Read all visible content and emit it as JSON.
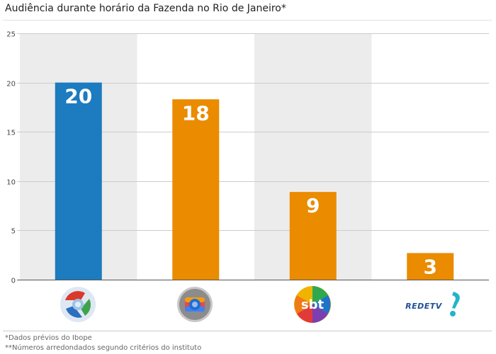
{
  "title": "Audiência durante horário da Fazenda no Rio de Janeiro*",
  "notes": [
    "*Dados prévios do Ibope",
    "**Números arredondados segundo critérios do instituto"
  ],
  "colors": {
    "record": "#1d7bbf",
    "others": "#ea8b00",
    "band": "#ececec",
    "grid": "#cccccc"
  },
  "logos": {
    "record": "record-logo-icon",
    "globo": "globo-logo-icon",
    "sbt": "sbt-logo-icon",
    "redetv": "redetv-logo-icon"
  },
  "chart_data": {
    "type": "bar",
    "categories": [
      "Record",
      "Globo",
      "SBT",
      "RedeTV!"
    ],
    "values": [
      20,
      18.3,
      8.9,
      2.7
    ],
    "data_labels": [
      "20",
      "18",
      "9",
      "3"
    ],
    "bar_colors": [
      "#1d7bbf",
      "#ea8b00",
      "#ea8b00",
      "#ea8b00"
    ],
    "ylim": [
      0,
      25
    ],
    "yticks": [
      0,
      5,
      10,
      15,
      20,
      25
    ],
    "xlabel": "",
    "ylabel": "",
    "grid": true,
    "legend": "none",
    "category_labels_shown_as": "channel logos"
  }
}
